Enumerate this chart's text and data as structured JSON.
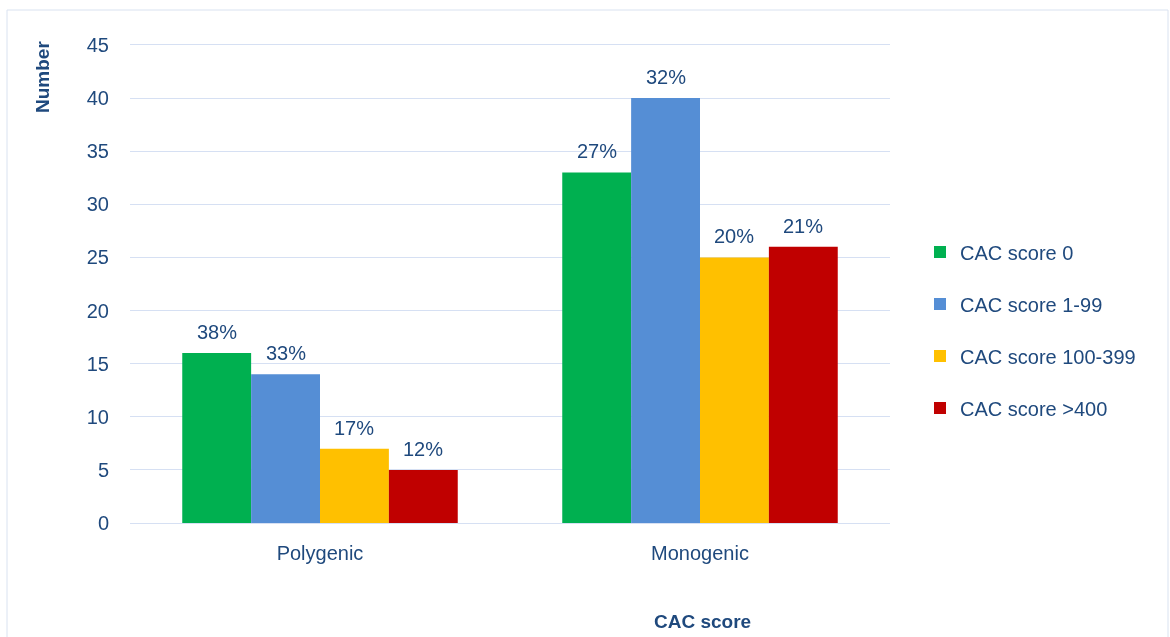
{
  "chart_data": {
    "type": "bar",
    "xlabel": "CAC score",
    "ylabel": "Number",
    "categories": [
      "Polygenic",
      "Monogenic"
    ],
    "series": [
      {
        "name": "CAC score 0",
        "color": "#00b050",
        "values": [
          16,
          33
        ]
      },
      {
        "name": "CAC score 1-99",
        "color": "#558ed5",
        "values": [
          14,
          40
        ]
      },
      {
        "name": "CAC score 100-399",
        "color": "#ffc000",
        "values": [
          7,
          25
        ]
      },
      {
        "name": "CAC score >400",
        "color": "#c00000",
        "values": [
          5,
          26
        ]
      }
    ],
    "annotations": [
      {
        "text": "38%",
        "y": 16
      },
      {
        "text": "33%",
        "y": 14
      },
      {
        "text": "17%",
        "y": 7
      },
      {
        "text": "12%",
        "y": 5
      },
      {
        "text": "27%",
        "y": 33
      },
      {
        "text": "32%",
        "y": 40
      },
      {
        "text": "20%",
        "y": 25
      },
      {
        "text": "21%",
        "y": 26
      }
    ],
    "ylim": [
      0,
      45
    ],
    "yticks": [
      0,
      5,
      10,
      15,
      20,
      25,
      30,
      35,
      40,
      45
    ],
    "grid": "y",
    "legend": "right"
  }
}
